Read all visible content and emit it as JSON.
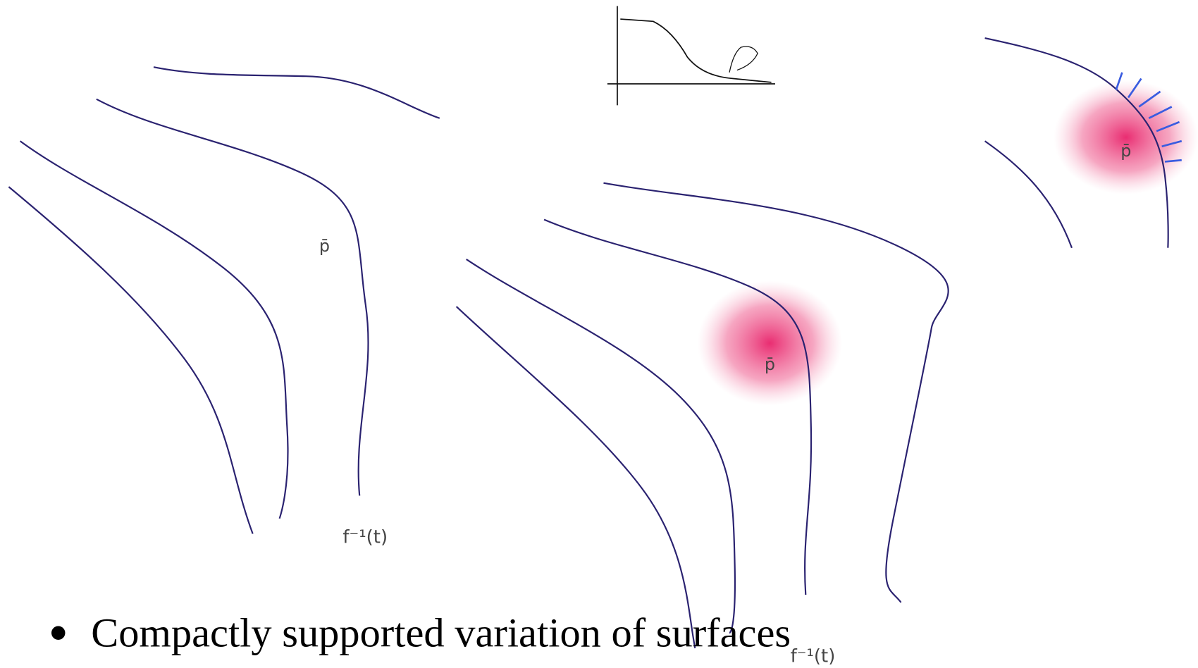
{
  "panels": [
    {
      "point_label": "p̄",
      "curve_label": "f⁻¹(t)"
    },
    {
      "point_label": "p̄",
      "curve_label": "f⁻¹(t)"
    },
    {
      "point_label": "p̄"
    }
  ],
  "bullet": "Compactly supported variation of surfaces"
}
